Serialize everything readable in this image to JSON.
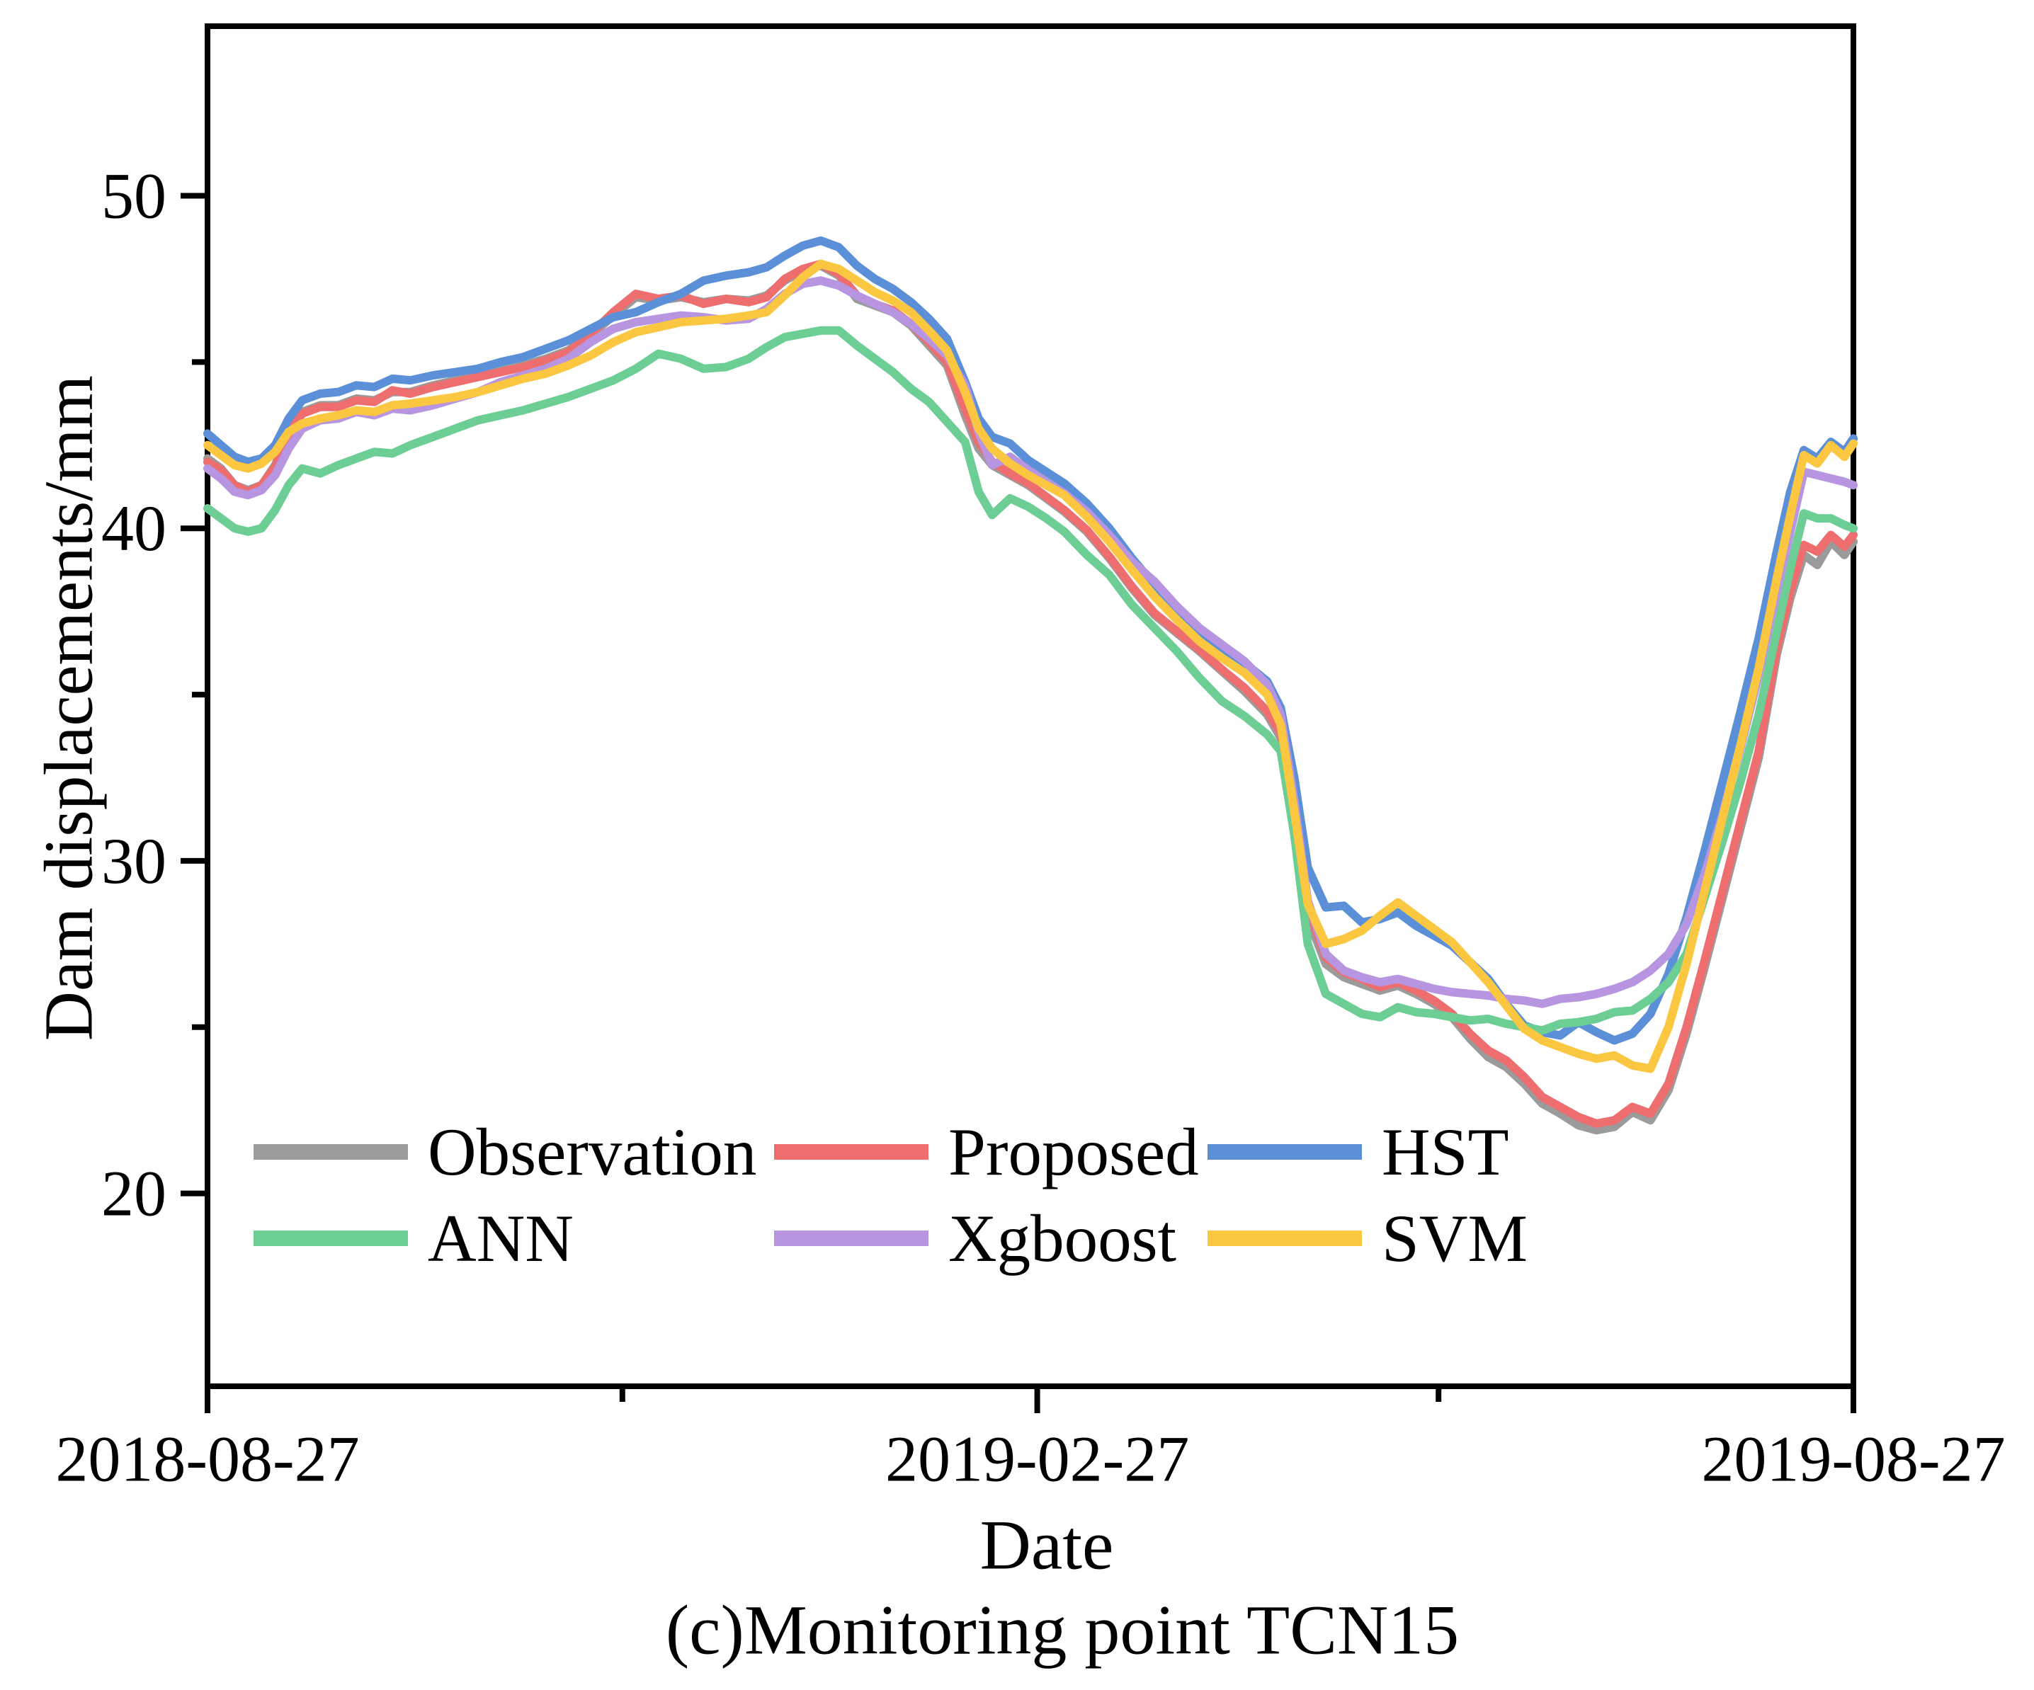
{
  "figure": {
    "caption": "(c)Monitoring point TCN15"
  },
  "chart_data": {
    "type": "line",
    "title": "",
    "xlabel": "Date",
    "ylabel": "Dam displacements/mm",
    "grid": false,
    "legend_position": "inside-lower-left, 2 rows x 3 columns",
    "xlim_days": [
      0,
      365
    ],
    "ylim": [
      14.2,
      55.1
    ],
    "y_ticks_major": [
      20,
      30,
      40,
      50
    ],
    "y_ticks_minor": [
      25,
      35,
      45
    ],
    "x_ticks": [
      {
        "day": 0,
        "label": "2018-08-27",
        "major": true
      },
      {
        "day": 92,
        "label": "",
        "major": false
      },
      {
        "day": 184,
        "label": "2019-02-27",
        "major": true
      },
      {
        "day": 273,
        "label": "",
        "major": false
      },
      {
        "day": 365,
        "label": "2019-08-27",
        "major": true
      }
    ],
    "x_unit": "days after 2018-08-27",
    "x": [
      0,
      3,
      6,
      9,
      12,
      15,
      18,
      21,
      25,
      29,
      33,
      37,
      41,
      45,
      50,
      55,
      60,
      65,
      70,
      75,
      80,
      85,
      90,
      95,
      100,
      105,
      110,
      115,
      120,
      124,
      128,
      132,
      136,
      140,
      144,
      148,
      152,
      156,
      160,
      164,
      168,
      171,
      174,
      178,
      182,
      186,
      190,
      195,
      200,
      205,
      210,
      215,
      220,
      225,
      230,
      235,
      238,
      241,
      244,
      248,
      252,
      256,
      260,
      264,
      268,
      272,
      276,
      280,
      284,
      288,
      292,
      296,
      300,
      304,
      308,
      312,
      316,
      320,
      324,
      328,
      332,
      336,
      340,
      344,
      348,
      351,
      354,
      357,
      360,
      363,
      365
    ],
    "series": [
      {
        "name": "Observation",
        "color": "#9B9B9B",
        "values": [
          42.1,
          41.8,
          41.3,
          41.15,
          41.3,
          41.9,
          42.9,
          43.5,
          43.7,
          43.7,
          43.9,
          43.85,
          44.1,
          44.1,
          44.3,
          44.45,
          44.6,
          44.75,
          44.9,
          45.1,
          45.35,
          45.8,
          46.4,
          46.95,
          46.85,
          46.95,
          46.8,
          46.9,
          46.85,
          47.0,
          47.45,
          47.75,
          47.9,
          47.6,
          46.9,
          46.7,
          46.5,
          46.1,
          45.5,
          44.9,
          43.4,
          42.4,
          41.9,
          41.6,
          41.3,
          40.9,
          40.5,
          39.9,
          39.1,
          38.2,
          37.4,
          36.85,
          36.3,
          35.7,
          35.1,
          34.4,
          33.7,
          31.0,
          28.3,
          26.9,
          26.5,
          26.3,
          26.1,
          26.25,
          26.0,
          25.7,
          25.3,
          24.65,
          24.1,
          23.8,
          23.3,
          22.7,
          22.4,
          22.05,
          21.9,
          22.0,
          22.45,
          22.2,
          23.1,
          24.8,
          26.8,
          28.9,
          31.0,
          33.1,
          36.2,
          37.9,
          39.2,
          38.9,
          39.6,
          39.2,
          39.6
        ]
      },
      {
        "name": "Proposed",
        "color": "#EE6E6F",
        "values": [
          42.0,
          41.75,
          41.3,
          41.1,
          41.3,
          41.85,
          42.85,
          43.45,
          43.65,
          43.65,
          43.85,
          43.8,
          44.15,
          44.05,
          44.25,
          44.4,
          44.55,
          44.7,
          44.85,
          45.05,
          45.3,
          45.85,
          46.5,
          47.05,
          46.9,
          47.0,
          46.75,
          46.9,
          46.8,
          46.95,
          47.5,
          47.8,
          47.95,
          47.65,
          47.0,
          46.75,
          46.55,
          46.15,
          45.6,
          45.0,
          43.6,
          42.6,
          42.0,
          41.65,
          41.35,
          40.95,
          40.55,
          39.95,
          39.15,
          38.25,
          37.45,
          36.9,
          36.35,
          35.75,
          35.2,
          34.5,
          33.85,
          31.3,
          28.6,
          27.1,
          26.65,
          26.45,
          26.2,
          26.35,
          26.1,
          25.8,
          25.4,
          24.8,
          24.3,
          24.0,
          23.5,
          22.9,
          22.6,
          22.3,
          22.1,
          22.2,
          22.6,
          22.4,
          23.3,
          25.0,
          27.0,
          29.1,
          31.2,
          33.3,
          36.4,
          38.1,
          39.5,
          39.3,
          39.8,
          39.45,
          39.8
        ]
      },
      {
        "name": "HST",
        "color": "#5B90D9",
        "values": [
          42.85,
          42.5,
          42.15,
          42.0,
          42.1,
          42.5,
          43.3,
          43.85,
          44.05,
          44.1,
          44.3,
          44.25,
          44.5,
          44.45,
          44.6,
          44.7,
          44.8,
          45.0,
          45.15,
          45.4,
          45.65,
          46.0,
          46.35,
          46.5,
          46.8,
          47.05,
          47.45,
          47.6,
          47.7,
          47.85,
          48.2,
          48.5,
          48.65,
          48.45,
          47.9,
          47.5,
          47.2,
          46.8,
          46.3,
          45.7,
          44.4,
          43.3,
          42.75,
          42.55,
          42.05,
          41.7,
          41.35,
          40.75,
          40.0,
          39.1,
          38.3,
          37.5,
          36.8,
          36.4,
          35.95,
          35.4,
          34.6,
          32.5,
          29.8,
          28.6,
          28.65,
          28.15,
          28.25,
          28.45,
          28.05,
          27.75,
          27.45,
          26.95,
          26.45,
          25.7,
          25.05,
          24.85,
          24.75,
          25.15,
          24.85,
          24.6,
          24.8,
          25.4,
          26.6,
          28.3,
          30.3,
          32.4,
          34.5,
          36.7,
          39.3,
          41.1,
          42.35,
          42.1,
          42.6,
          42.3,
          42.7
        ]
      },
      {
        "name": "ANN",
        "color": "#6DCE95",
        "values": [
          40.6,
          40.3,
          40.0,
          39.9,
          40.0,
          40.55,
          41.3,
          41.8,
          41.65,
          41.9,
          42.1,
          42.3,
          42.25,
          42.5,
          42.75,
          43.0,
          43.25,
          43.4,
          43.55,
          43.75,
          43.95,
          44.2,
          44.45,
          44.8,
          45.25,
          45.1,
          44.8,
          44.85,
          45.1,
          45.45,
          45.75,
          45.85,
          45.95,
          45.95,
          45.5,
          45.1,
          44.7,
          44.2,
          43.8,
          43.2,
          42.6,
          41.1,
          40.4,
          40.9,
          40.65,
          40.3,
          39.9,
          39.2,
          38.6,
          37.7,
          37.0,
          36.3,
          35.5,
          34.8,
          34.35,
          33.8,
          33.3,
          30.8,
          27.5,
          26.0,
          25.7,
          25.4,
          25.3,
          25.6,
          25.45,
          25.4,
          25.3,
          25.2,
          25.25,
          25.1,
          25.0,
          24.9,
          25.1,
          25.15,
          25.25,
          25.45,
          25.5,
          25.85,
          26.35,
          27.2,
          28.9,
          30.6,
          32.4,
          34.4,
          36.9,
          38.8,
          40.45,
          40.3,
          40.3,
          40.1,
          40.0
        ]
      },
      {
        "name": "Xgboost",
        "color": "#B795E1",
        "values": [
          41.8,
          41.5,
          41.1,
          41.0,
          41.15,
          41.6,
          42.4,
          43.0,
          43.25,
          43.3,
          43.5,
          43.4,
          43.6,
          43.55,
          43.7,
          43.9,
          44.1,
          44.4,
          44.6,
          44.8,
          45.1,
          45.6,
          46.0,
          46.2,
          46.3,
          46.4,
          46.35,
          46.25,
          46.3,
          46.6,
          47.05,
          47.35,
          47.45,
          47.3,
          47.0,
          46.75,
          46.5,
          46.15,
          45.7,
          45.2,
          44.3,
          42.9,
          41.9,
          42.15,
          41.75,
          41.4,
          41.05,
          40.5,
          39.8,
          39.0,
          38.4,
          37.65,
          37.0,
          36.5,
          36.0,
          35.3,
          34.4,
          31.8,
          28.8,
          27.2,
          26.7,
          26.5,
          26.35,
          26.45,
          26.3,
          26.15,
          26.05,
          26.0,
          25.95,
          25.85,
          25.8,
          25.7,
          25.85,
          25.9,
          26.0,
          26.15,
          26.35,
          26.7,
          27.2,
          28.1,
          29.6,
          31.4,
          33.4,
          35.6,
          38.1,
          39.9,
          41.7,
          41.6,
          41.5,
          41.4,
          41.3
        ]
      },
      {
        "name": "SVM",
        "color": "#FBC740",
        "values": [
          42.5,
          42.2,
          41.9,
          41.8,
          41.95,
          42.3,
          42.9,
          43.15,
          43.3,
          43.4,
          43.55,
          43.5,
          43.7,
          43.75,
          43.85,
          43.95,
          44.1,
          44.3,
          44.5,
          44.65,
          44.9,
          45.2,
          45.6,
          45.9,
          46.05,
          46.2,
          46.25,
          46.3,
          46.4,
          46.5,
          47.0,
          47.55,
          47.95,
          47.8,
          47.45,
          47.1,
          46.85,
          46.5,
          45.95,
          45.35,
          44.1,
          43.0,
          42.4,
          41.95,
          41.6,
          41.3,
          41.0,
          40.35,
          39.6,
          38.75,
          37.95,
          37.25,
          36.6,
          36.1,
          35.65,
          35.0,
          34.1,
          31.5,
          28.7,
          27.5,
          27.65,
          27.9,
          28.35,
          28.75,
          28.35,
          27.95,
          27.55,
          26.95,
          26.35,
          25.65,
          24.95,
          24.6,
          24.4,
          24.2,
          24.05,
          24.15,
          23.85,
          23.75,
          25.0,
          26.9,
          29.1,
          31.3,
          33.5,
          35.8,
          38.5,
          40.4,
          42.2,
          41.95,
          42.5,
          42.15,
          42.55
        ]
      }
    ]
  }
}
